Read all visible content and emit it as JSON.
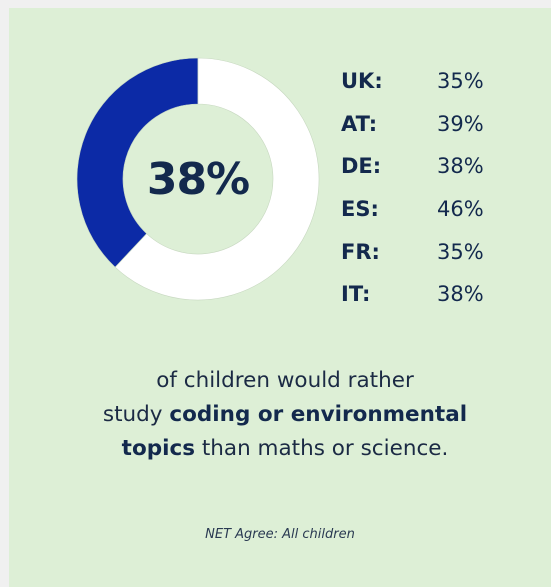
{
  "colors": {
    "card_background": "#ddefd6",
    "donut_fill": "#0c2aa6",
    "donut_rest": "#ffffff",
    "text_dark": "#13294d"
  },
  "chart_data": {
    "type": "pie",
    "variant": "donut",
    "headline_value": 38,
    "headline_label": "38%",
    "slices": [
      {
        "label": "",
        "value": 38,
        "color": "#0c2aa6"
      },
      {
        "label": "",
        "value": 62,
        "color": "#ffffff"
      }
    ],
    "breakdown": [
      {
        "country": "UK:",
        "value": "35%"
      },
      {
        "country": "AT:",
        "value": "39%"
      },
      {
        "country": "DE:",
        "value": "38%"
      },
      {
        "country": "ES:",
        "value": "46%"
      },
      {
        "country": "FR:",
        "value": "35%"
      },
      {
        "country": "IT:",
        "value": "38%"
      }
    ]
  },
  "caption": {
    "line1": "of children would rather",
    "line2_prefix": "study ",
    "line2_bold": "coding or environmental",
    "line3_bold": "topics",
    "line3_suffix": " than maths or science."
  },
  "note": "NET Agree: All children"
}
